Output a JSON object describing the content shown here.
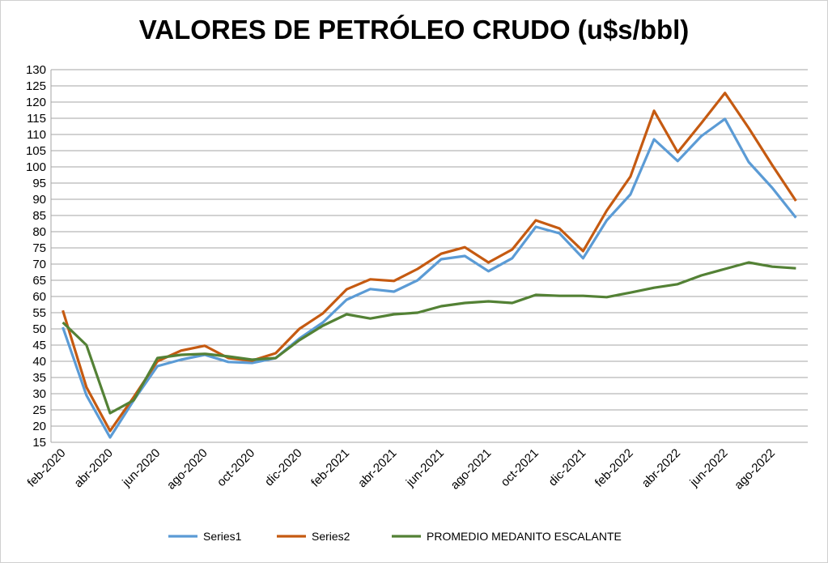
{
  "chart_data": {
    "type": "line",
    "title": "VALORES DE PETRÓLEO CRUDO (u$s/bbl)",
    "xlabel": "",
    "ylabel": "",
    "ylim": [
      15,
      130
    ],
    "ystep": 5,
    "grid": true,
    "legend_position": "bottom",
    "x_tick_labels": [
      "feb-2020",
      "abr-2020",
      "jun-2020",
      "ago-2020",
      "oct-2020",
      "dic-2020",
      "feb-2021",
      "abr-2021",
      "jun-2021",
      "ago-2021",
      "oct-2021",
      "dic-2021",
      "feb-2022",
      "abr-2022",
      "jun-2022",
      "ago-2022"
    ],
    "months": 32,
    "series": [
      {
        "name": "Series1",
        "color": "#5b9bd5",
        "values": [
          50.5,
          29.5,
          16.5,
          28,
          38.5,
          40.5,
          42,
          39.8,
          39.5,
          41,
          47,
          52,
          59,
          62.3,
          61.5,
          65,
          71.5,
          72.5,
          67.8,
          71.8,
          81.5,
          79.5,
          71.8,
          83.5,
          91.5,
          108.5,
          101.8,
          109.5,
          114.8,
          101.5,
          93.5,
          84.3
        ]
      },
      {
        "name": "Series2",
        "color": "#c55a11",
        "values": [
          55.7,
          32,
          18.5,
          29,
          40,
          43.3,
          44.8,
          41,
          40.2,
          42.5,
          50,
          54.8,
          62.2,
          65.3,
          64.8,
          68.5,
          73.2,
          75.2,
          70.5,
          74.5,
          83.5,
          81,
          74,
          86.5,
          97,
          117.3,
          104.5,
          113.5,
          122.8,
          112,
          100.5,
          89.5
        ]
      },
      {
        "name": "PROMEDIO MEDANITO ESCALANTE",
        "color": "#538135",
        "values": [
          52,
          45,
          24,
          28,
          41,
          42,
          42.3,
          41.5,
          40.5,
          41,
          46.5,
          51,
          54.5,
          53.2,
          54.5,
          55,
          57,
          58,
          58.5,
          58,
          60.5,
          60.2,
          60.2,
          59.8,
          61.2,
          62.7,
          63.8,
          66.5,
          68.5,
          70.5,
          69.2,
          68.7
        ]
      }
    ]
  }
}
